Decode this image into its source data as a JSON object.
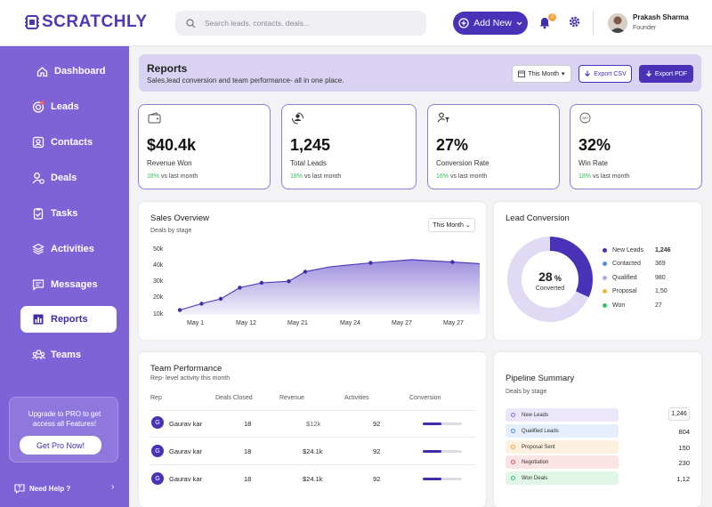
{
  "app": {
    "name": "SCRATCHLY"
  },
  "search": {
    "placeholder": "Search leads, contacts, deals..."
  },
  "header": {
    "add_new_label": "Add New",
    "notification_count": "2",
    "user": {
      "name": "Prakash Sharma",
      "role": "Founder"
    }
  },
  "sidebar": {
    "items": [
      {
        "label": "Dashboard",
        "icon": "home-icon"
      },
      {
        "label": "Leads",
        "icon": "target-icon"
      },
      {
        "label": "Contacts",
        "icon": "contact-card-icon"
      },
      {
        "label": "Deals",
        "icon": "deal-user-icon"
      },
      {
        "label": "Tasks",
        "icon": "clipboard-check-icon"
      },
      {
        "label": "Activities",
        "icon": "layers-icon"
      },
      {
        "label": "Messages",
        "icon": "message-icon"
      },
      {
        "label": "Reports",
        "icon": "report-chart-icon",
        "active": true
      },
      {
        "label": "Teams",
        "icon": "team-icon"
      }
    ],
    "promo": {
      "text": "Upgrade to  PRO to get access all Features!",
      "button": "Get Pro Now!"
    },
    "help": "Need Help ?"
  },
  "reports": {
    "title": "Reports",
    "subtitle": "Sales,lead conversion and team performance- all in one place.",
    "period": "This Month",
    "export_csv": "Export CSV",
    "export_pdf": "Export PDF"
  },
  "stats": [
    {
      "value": "$40.4k",
      "label": "Revenue Won",
      "change": "18%",
      "suffix": "vs last month",
      "icon": "wallet-icon"
    },
    {
      "value": "1,245",
      "label": "Total Leads",
      "change": "18%",
      "suffix": "vs last month",
      "icon": "user-cycle-icon"
    },
    {
      "value": "27%",
      "label": "Conversion Rate",
      "change": "16%",
      "suffix": "vs last month",
      "icon": "user-filter-icon"
    },
    {
      "value": "32%",
      "label": "Win Rate",
      "change": "18%",
      "suffix": "vs last month",
      "icon": "win-rate-icon"
    }
  ],
  "sales_overview": {
    "title": "Sales Overview",
    "subtitle": "Deals by stage",
    "period": "This Month"
  },
  "lead_conversion": {
    "title": "Lead Conversion",
    "center_value": "28",
    "center_unit": "%",
    "center_label": "Converted",
    "legend": [
      {
        "label": "New Leads",
        "value": "1,246",
        "color": "#4a32b8"
      },
      {
        "label": "Contacted",
        "value": "369",
        "color": "#4e8fe8"
      },
      {
        "label": "Qualified",
        "value": "980",
        "color": "#b6a8e6"
      },
      {
        "label": "Proposal",
        "value": "1,50",
        "color": "#f2b43a"
      },
      {
        "label": "Won",
        "value": "27",
        "color": "#3cbf6a"
      }
    ]
  },
  "team_performance": {
    "title": "Team Performance",
    "subtitle": "Rep- level activity this month",
    "columns": [
      "Rep",
      "Deals Closed",
      "Revenue",
      "Activities",
      "Conversion"
    ],
    "rows": [
      {
        "initial": "G",
        "name": "Gaurav kar",
        "deals": "18",
        "revenue": "$12k",
        "activities": "92",
        "conversion": 0.48
      },
      {
        "initial": "G",
        "name": "Gaurav kar",
        "deals": "18",
        "revenue": "$24.1k",
        "activities": "92",
        "conversion": 0.48
      },
      {
        "initial": "G",
        "name": "Gaurav kar",
        "deals": "18",
        "revenue": "$24.1k",
        "activities": "92",
        "conversion": 0.48
      }
    ]
  },
  "pipeline": {
    "title": "Pipeline Summary",
    "subtitle": "Deals by stage",
    "rows": [
      {
        "label": "New Leads",
        "value": "1,246",
        "color": "#8b72e0",
        "bg": "#ebe6fa"
      },
      {
        "label": "Qualified Leads",
        "value": "804",
        "color": "#4e8fe8",
        "bg": "#e4eefc"
      },
      {
        "label": "Proposal Sent",
        "value": "150",
        "color": "#f2a33a",
        "bg": "#fdf0de"
      },
      {
        "label": "Negotiation",
        "value": "230",
        "color": "#e85555",
        "bg": "#fde4e4"
      },
      {
        "label": "Won Deals",
        "value": "1,12",
        "color": "#3cbf6a",
        "bg": "#e0f6e7"
      }
    ]
  },
  "chart_data": {
    "type": "area",
    "title": "Sales Overview",
    "x": [
      "May 1",
      "May 12",
      "May 21",
      "May 24",
      "May 27",
      "May 27"
    ],
    "y_ticks": [
      "50k",
      "40k",
      "30k",
      "20k",
      "10k"
    ],
    "ylim": [
      10000,
      50000
    ],
    "series": [
      {
        "values": [
          [
            0,
            13000
          ],
          [
            0.8,
            17000
          ],
          [
            1.5,
            20000
          ],
          [
            2.2,
            27000
          ],
          [
            3.0,
            30000
          ],
          [
            4.0,
            31000
          ],
          [
            4.6,
            37000
          ],
          [
            5.5,
            40000
          ],
          [
            7.0,
            42500
          ],
          [
            8.5,
            44500
          ],
          [
            10.0,
            43000
          ],
          [
            11.0,
            42000
          ]
        ]
      }
    ],
    "grid": false
  }
}
